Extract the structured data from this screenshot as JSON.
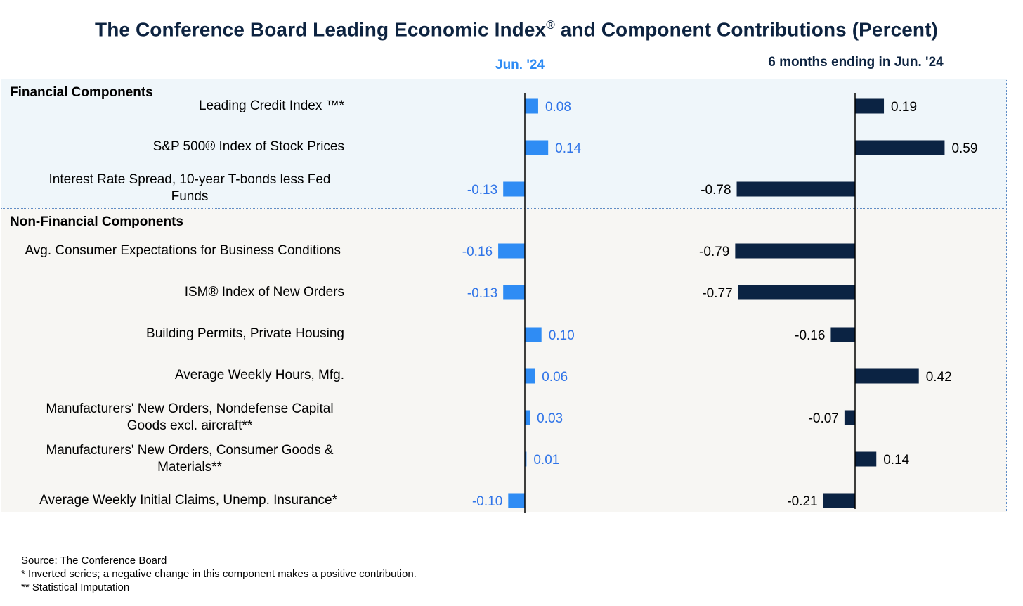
{
  "title_main": "The Conference Board Leading Economic Index",
  "title_reg": "®",
  "title_rest": " and Component Contributions (Percent)",
  "columns": {
    "left": "Jun. '24",
    "right": "6 months ending in Jun. '24"
  },
  "sections": {
    "financial": "Financial Components",
    "non_financial": "Non-Financial Components"
  },
  "colors": {
    "monthly_bar": "#2f8cf4",
    "monthly_label": "#2f74e8",
    "six_month_bar": "#0b2343",
    "financial_bg": "#eff6fa",
    "non_financial_bg": "#f7f6f3"
  },
  "rows": [
    {
      "label": "Leading Credit Index ™*",
      "label_lines": [
        "Leading Credit Index ™*"
      ],
      "section": "financial"
    },
    {
      "label": "S&P 500® Index of Stock Prices",
      "label_lines": [
        "S&P 500® Index of Stock Prices"
      ],
      "section": "financial"
    },
    {
      "label": "Interest Rate Spread, 10-year T-bonds less Fed Funds",
      "label_lines": [
        "Interest Rate Spread, 10-year T-bonds less Fed",
        "Funds"
      ],
      "section": "financial"
    },
    {
      "label": "Avg. Consumer Expectations for Business Conditions",
      "label_lines": [
        "Avg. Consumer Expectations for Business Conditions"
      ],
      "section": "non_financial"
    },
    {
      "label": "ISM® Index of New Orders",
      "label_lines": [
        "ISM® Index of New Orders"
      ],
      "section": "non_financial"
    },
    {
      "label": "Building Permits, Private Housing",
      "label_lines": [
        "Building Permits, Private Housing"
      ],
      "section": "non_financial"
    },
    {
      "label": "Average Weekly Hours, Mfg.",
      "label_lines": [
        "Average Weekly Hours, Mfg."
      ],
      "section": "non_financial"
    },
    {
      "label": "Manufacturers' New Orders, Nondefense Capital Goods excl. aircraft**",
      "label_lines": [
        "Manufacturers' New Orders, Nondefense Capital",
        "Goods excl. aircraft**"
      ],
      "section": "non_financial"
    },
    {
      "label": "Manufacturers' New Orders, Consumer Goods & Materials**",
      "label_lines": [
        "Manufacturers' New Orders, Consumer Goods &",
        "Materials**"
      ],
      "section": "non_financial"
    },
    {
      "label": "Average Weekly Initial Claims, Unemp. Insurance*",
      "label_lines": [
        "Average Weekly Initial Claims, Unemp. Insurance*"
      ],
      "section": "non_financial"
    }
  ],
  "chart_data": [
    {
      "type": "bar",
      "orientation": "horizontal",
      "title": "Jun. '24",
      "categories": [
        "Leading Credit Index ™*",
        "S&P 500® Index of Stock Prices",
        "Interest Rate Spread, 10-year T-bonds less Fed Funds",
        "Avg. Consumer Expectations for Business Conditions",
        "ISM® Index of New Orders",
        "Building Permits, Private Housing",
        "Average Weekly Hours, Mfg.",
        "Manufacturers' New Orders, Nondefense Capital Goods excl. aircraft**",
        "Manufacturers' New Orders, Consumer Goods & Materials**",
        "Average Weekly Initial Claims, Unemp. Insurance*"
      ],
      "values": [
        0.08,
        0.14,
        -0.13,
        -0.16,
        -0.13,
        0.1,
        0.06,
        0.03,
        0.01,
        -0.1
      ],
      "value_labels": [
        "0.08",
        "0.14",
        "-0.13",
        "-0.16",
        "-0.13",
        "0.10",
        "0.06",
        "0.03",
        "0.01",
        "-0.10"
      ],
      "xlabel": "",
      "ylabel": "",
      "grid": false
    },
    {
      "type": "bar",
      "orientation": "horizontal",
      "title": "6 months ending in Jun. '24",
      "categories": [
        "Leading Credit Index ™*",
        "S&P 500® Index of Stock Prices",
        "Interest Rate Spread, 10-year T-bonds less Fed Funds",
        "Avg. Consumer Expectations for Business Conditions",
        "ISM® Index of New Orders",
        "Building Permits, Private Housing",
        "Average Weekly Hours, Mfg.",
        "Manufacturers' New Orders, Nondefense Capital Goods excl. aircraft**",
        "Manufacturers' New Orders, Consumer Goods & Materials**",
        "Average Weekly Initial Claims, Unemp. Insurance*"
      ],
      "values": [
        0.19,
        0.59,
        -0.78,
        -0.79,
        -0.77,
        -0.16,
        0.42,
        -0.07,
        0.14,
        -0.21
      ],
      "value_labels": [
        "0.19",
        "0.59",
        "-0.78",
        "-0.79",
        "-0.77",
        "-0.16",
        "0.42",
        "-0.07",
        "0.14",
        "-0.21"
      ],
      "xlabel": "",
      "ylabel": "",
      "grid": false
    }
  ],
  "footnotes": {
    "source": "Source: The Conference Board",
    "note1": "*  Inverted series; a negative change in this component makes a positive contribution.",
    "note2": "**  Statistical Imputation"
  }
}
